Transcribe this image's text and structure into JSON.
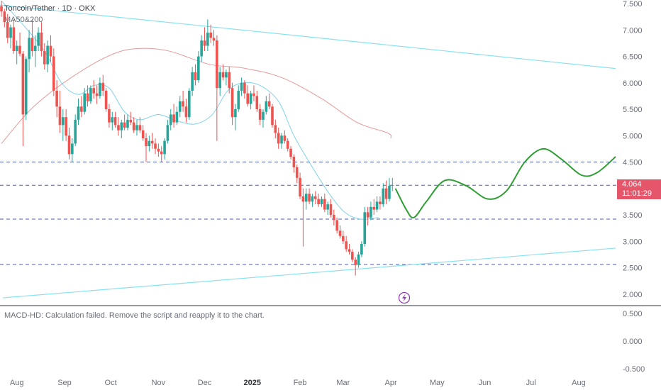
{
  "header": {
    "symbol_line": "Toncoin/Tether · 1D · OKX",
    "indicator": "MA50&200"
  },
  "price_tag": {
    "price": "4.064",
    "countdown": "11:01:29"
  },
  "macd_message": "MACD-HD: Calculation failed. Remove the script and reapply it to the chart.",
  "colors": {
    "up": "#26a69a",
    "down": "#ef5350",
    "ma50": "#7fd3e8",
    "ma200": "#e59a9a",
    "trend": "#87e2f0",
    "projection": "#2e9e32",
    "level": "#4b5bb5",
    "tag": "#e5566a"
  },
  "chart_data": {
    "type": "candlestick",
    "title": "Toncoin/Tether · 1D · OKX",
    "price_axis": {
      "ticks": [
        "7.500",
        "7.000",
        "6.500",
        "6.000",
        "5.500",
        "5.000",
        "4.500",
        "4.000",
        "3.500",
        "3.000",
        "2.500",
        "2.000"
      ],
      "range": [
        1.8,
        7.55
      ]
    },
    "macd_axis": {
      "ticks": [
        "0.500",
        "0.000",
        "-0.500"
      ]
    },
    "time_axis": {
      "labels": [
        "Aug",
        "Sep",
        "Oct",
        "Nov",
        "Dec",
        "2025",
        "Feb",
        "Mar",
        "Apr",
        "May",
        "Jun",
        "Jul",
        "Aug"
      ],
      "bold": "2025"
    },
    "last_price": 4.064,
    "horizontal_levels": [
      4.5,
      4.06,
      3.42,
      2.56
    ],
    "trendlines": [
      {
        "name": "upper",
        "points": [
          [
            "2024-06-25",
            7.55
          ],
          [
            "2025-08-25",
            6.27
          ]
        ]
      },
      {
        "name": "lower",
        "points": [
          [
            "2024-07-23",
            1.93
          ],
          [
            "2025-08-25",
            2.87
          ]
        ]
      }
    ],
    "series": [
      {
        "name": "MA50",
        "points": [
          [
            "2024-07-22",
            7.55
          ],
          [
            "2024-08-05",
            7.1
          ],
          [
            "2024-08-19",
            6.6
          ],
          [
            "2024-08-30",
            6.0
          ],
          [
            "2024-09-10",
            5.78
          ],
          [
            "2024-09-20",
            5.95
          ],
          [
            "2024-09-30",
            5.9
          ],
          [
            "2024-10-10",
            5.45
          ],
          [
            "2024-10-20",
            5.3
          ],
          [
            "2024-11-01",
            5.4
          ],
          [
            "2024-11-13",
            5.28
          ],
          [
            "2024-11-25",
            5.22
          ],
          [
            "2024-12-06",
            5.4
          ],
          [
            "2024-12-16",
            5.85
          ],
          [
            "2024-12-26",
            6.0
          ],
          [
            "2025-01-06",
            5.95
          ],
          [
            "2025-01-18",
            5.65
          ],
          [
            "2025-01-28",
            5.0
          ],
          [
            "2025-02-08",
            4.45
          ],
          [
            "2025-02-20",
            3.9
          ],
          [
            "2025-03-02",
            3.55
          ],
          [
            "2025-03-12",
            3.42
          ],
          [
            "2025-03-24",
            3.45
          ]
        ]
      },
      {
        "name": "MA200",
        "points": [
          [
            "2024-07-22",
            4.85
          ],
          [
            "2024-08-12",
            5.55
          ],
          [
            "2024-09-08",
            6.15
          ],
          [
            "2024-10-03",
            6.55
          ],
          [
            "2024-10-20",
            6.65
          ],
          [
            "2024-11-08",
            6.6
          ],
          [
            "2024-12-04",
            6.35
          ],
          [
            "2024-12-26",
            6.28
          ],
          [
            "2025-01-20",
            6.1
          ],
          [
            "2025-02-15",
            5.7
          ],
          [
            "2025-03-10",
            5.25
          ],
          [
            "2025-03-30",
            5.05
          ],
          [
            "2025-04-01",
            4.95
          ]
        ]
      },
      {
        "name": "projection",
        "points": [
          [
            "2025-04-04",
            4.0
          ],
          [
            "2025-04-11",
            3.6
          ],
          [
            "2025-04-16",
            3.45
          ],
          [
            "2025-04-24",
            3.75
          ],
          [
            "2025-05-06",
            4.15
          ],
          [
            "2025-05-20",
            4.05
          ],
          [
            "2025-06-03",
            3.8
          ],
          [
            "2025-06-15",
            3.95
          ],
          [
            "2025-06-27",
            4.5
          ],
          [
            "2025-07-09",
            4.75
          ],
          [
            "2025-07-21",
            4.55
          ],
          [
            "2025-08-03",
            4.25
          ],
          [
            "2025-08-13",
            4.3
          ],
          [
            "2025-08-25",
            4.6
          ]
        ]
      }
    ],
    "candles": [
      [
        "2024-07-22",
        7.45,
        7.55,
        7.25,
        7.35
      ],
      [
        "2024-07-24",
        7.35,
        7.4,
        7.05,
        7.15
      ],
      [
        "2024-07-26",
        7.15,
        7.3,
        6.75,
        6.85
      ],
      [
        "2024-07-28",
        6.85,
        7.1,
        6.65,
        7.05
      ],
      [
        "2024-07-30",
        7.05,
        7.2,
        6.55,
        6.6
      ],
      [
        "2024-08-01",
        6.6,
        6.8,
        6.35,
        6.7
      ],
      [
        "2024-08-03",
        6.7,
        6.95,
        6.5,
        6.55
      ],
      [
        "2024-08-05",
        6.55,
        6.6,
        4.8,
        5.4
      ],
      [
        "2024-08-07",
        5.4,
        6.5,
        5.3,
        6.45
      ],
      [
        "2024-08-09",
        6.45,
        7.0,
        6.2,
        6.85
      ],
      [
        "2024-08-11",
        6.85,
        7.2,
        6.5,
        6.6
      ],
      [
        "2024-08-13",
        6.6,
        6.9,
        6.3,
        6.7
      ],
      [
        "2024-08-15",
        6.7,
        7.05,
        6.6,
        6.95
      ],
      [
        "2024-08-17",
        6.95,
        7.15,
        6.5,
        6.6
      ],
      [
        "2024-08-19",
        6.6,
        6.75,
        6.25,
        6.35
      ],
      [
        "2024-08-21",
        6.35,
        6.8,
        6.2,
        6.7
      ],
      [
        "2024-08-23",
        6.7,
        6.9,
        6.4,
        6.5
      ],
      [
        "2024-08-25",
        6.5,
        6.65,
        5.75,
        5.85
      ],
      [
        "2024-08-27",
        5.85,
        6.05,
        5.35,
        5.55
      ],
      [
        "2024-08-29",
        5.55,
        5.85,
        5.05,
        5.2
      ],
      [
        "2024-08-31",
        5.2,
        5.5,
        4.9,
        5.35
      ],
      [
        "2024-09-02",
        5.35,
        5.5,
        4.9,
        5.0
      ],
      [
        "2024-09-04",
        5.0,
        5.15,
        4.55,
        4.65
      ],
      [
        "2024-09-06",
        4.65,
        4.95,
        4.5,
        4.85
      ],
      [
        "2024-09-08",
        4.85,
        5.4,
        4.8,
        5.3
      ],
      [
        "2024-09-10",
        5.3,
        5.7,
        5.2,
        5.55
      ],
      [
        "2024-09-12",
        5.55,
        5.75,
        5.35,
        5.45
      ],
      [
        "2024-09-14",
        5.45,
        5.9,
        5.4,
        5.8
      ],
      [
        "2024-09-16",
        5.8,
        5.95,
        5.55,
        5.65
      ],
      [
        "2024-09-18",
        5.65,
        5.95,
        5.6,
        5.9
      ],
      [
        "2024-09-20",
        5.9,
        6.05,
        5.7,
        5.8
      ],
      [
        "2024-09-22",
        5.8,
        5.95,
        5.6,
        5.75
      ],
      [
        "2024-09-24",
        5.75,
        6.1,
        5.7,
        6.0
      ],
      [
        "2024-09-26",
        6.0,
        6.15,
        5.75,
        5.85
      ],
      [
        "2024-09-28",
        5.85,
        5.9,
        5.45,
        5.5
      ],
      [
        "2024-09-30",
        5.5,
        5.6,
        5.15,
        5.25
      ],
      [
        "2024-10-02",
        5.25,
        5.45,
        5.1,
        5.35
      ],
      [
        "2024-10-04",
        5.35,
        5.45,
        5.15,
        5.2
      ],
      [
        "2024-10-06",
        5.2,
        5.35,
        5.0,
        5.1
      ],
      [
        "2024-10-08",
        5.1,
        5.3,
        4.95,
        5.25
      ],
      [
        "2024-10-10",
        5.25,
        5.4,
        5.1,
        5.15
      ],
      [
        "2024-10-12",
        5.15,
        5.4,
        5.1,
        5.3
      ],
      [
        "2024-10-14",
        5.3,
        5.45,
        5.2,
        5.25
      ],
      [
        "2024-10-16",
        5.25,
        5.35,
        5.05,
        5.1
      ],
      [
        "2024-10-18",
        5.1,
        5.3,
        5.0,
        5.2
      ],
      [
        "2024-10-20",
        5.2,
        5.35,
        5.05,
        5.1
      ],
      [
        "2024-10-22",
        5.1,
        5.2,
        4.9,
        4.95
      ],
      [
        "2024-10-24",
        4.95,
        5.05,
        4.5,
        4.8
      ],
      [
        "2024-10-26",
        4.8,
        5.0,
        4.7,
        4.9
      ],
      [
        "2024-10-28",
        4.9,
        5.05,
        4.75,
        4.85
      ],
      [
        "2024-10-30",
        4.85,
        4.95,
        4.65,
        4.75
      ],
      [
        "2024-11-01",
        4.75,
        4.85,
        4.6,
        4.7
      ],
      [
        "2024-11-03",
        4.7,
        4.8,
        4.5,
        4.65
      ],
      [
        "2024-11-05",
        4.65,
        4.95,
        4.55,
        4.9
      ],
      [
        "2024-11-07",
        4.9,
        5.3,
        4.85,
        5.2
      ],
      [
        "2024-11-09",
        5.2,
        5.5,
        5.1,
        5.4
      ],
      [
        "2024-11-11",
        5.4,
        5.6,
        5.15,
        5.25
      ],
      [
        "2024-11-13",
        5.25,
        5.55,
        5.2,
        5.45
      ],
      [
        "2024-11-15",
        5.45,
        5.75,
        5.35,
        5.65
      ],
      [
        "2024-11-17",
        5.65,
        5.85,
        5.45,
        5.55
      ],
      [
        "2024-11-19",
        5.55,
        5.7,
        5.25,
        5.35
      ],
      [
        "2024-11-21",
        5.35,
        5.9,
        5.3,
        5.85
      ],
      [
        "2024-11-23",
        5.85,
        6.3,
        5.75,
        6.2
      ],
      [
        "2024-11-25",
        6.2,
        6.35,
        5.95,
        6.05
      ],
      [
        "2024-11-27",
        6.05,
        6.6,
        6.0,
        6.5
      ],
      [
        "2024-11-29",
        6.5,
        6.9,
        6.4,
        6.8
      ],
      [
        "2024-12-01",
        6.8,
        7.05,
        6.6,
        6.7
      ],
      [
        "2024-12-03",
        6.7,
        7.2,
        6.6,
        6.95
      ],
      [
        "2024-12-05",
        6.95,
        7.1,
        6.75,
        6.85
      ],
      [
        "2024-12-07",
        6.85,
        7.0,
        6.7,
        6.8
      ],
      [
        "2024-12-09",
        6.8,
        6.9,
        4.9,
        5.9
      ],
      [
        "2024-12-11",
        5.9,
        6.3,
        5.75,
        6.2
      ],
      [
        "2024-12-13",
        6.2,
        6.35,
        6.05,
        6.1
      ],
      [
        "2024-12-15",
        6.1,
        6.25,
        5.95,
        6.2
      ],
      [
        "2024-12-17",
        6.2,
        6.3,
        5.8,
        5.9
      ],
      [
        "2024-12-19",
        5.9,
        6.0,
        5.2,
        5.35
      ],
      [
        "2024-12-21",
        5.35,
        5.6,
        5.1,
        5.5
      ],
      [
        "2024-12-23",
        5.5,
        5.95,
        5.45,
        5.85
      ],
      [
        "2024-12-25",
        5.85,
        6.1,
        5.75,
        6.0
      ],
      [
        "2024-12-27",
        6.0,
        6.05,
        5.7,
        5.8
      ],
      [
        "2024-12-29",
        5.8,
        5.95,
        5.55,
        5.6
      ],
      [
        "2024-12-31",
        5.6,
        5.85,
        5.5,
        5.8
      ],
      [
        "2025-01-02",
        5.8,
        5.95,
        5.65,
        5.75
      ],
      [
        "2025-01-04",
        5.75,
        5.85,
        5.45,
        5.5
      ],
      [
        "2025-01-06",
        5.5,
        5.6,
        5.2,
        5.3
      ],
      [
        "2025-01-08",
        5.3,
        5.5,
        5.15,
        5.45
      ],
      [
        "2025-01-10",
        5.45,
        5.75,
        5.4,
        5.65
      ],
      [
        "2025-01-12",
        5.65,
        5.8,
        5.5,
        5.55
      ],
      [
        "2025-01-14",
        5.55,
        5.6,
        5.15,
        5.2
      ],
      [
        "2025-01-16",
        5.2,
        5.3,
        4.95,
        5.05
      ],
      [
        "2025-01-18",
        5.05,
        5.15,
        4.75,
        4.85
      ],
      [
        "2025-01-20",
        4.85,
        5.05,
        4.75,
        5.0
      ],
      [
        "2025-01-22",
        5.0,
        5.1,
        4.85,
        4.9
      ],
      [
        "2025-01-24",
        4.9,
        4.95,
        4.7,
        4.75
      ],
      [
        "2025-01-26",
        4.75,
        4.8,
        4.55,
        4.6
      ],
      [
        "2025-01-28",
        4.6,
        4.65,
        4.3,
        4.4
      ],
      [
        "2025-01-30",
        4.4,
        4.45,
        4.1,
        4.2
      ],
      [
        "2025-02-01",
        4.2,
        4.3,
        3.8,
        3.85
      ],
      [
        "2025-02-03",
        3.85,
        4.0,
        2.9,
        3.75
      ],
      [
        "2025-02-05",
        3.75,
        4.0,
        3.6,
        3.9
      ],
      [
        "2025-02-07",
        3.9,
        4.0,
        3.7,
        3.75
      ],
      [
        "2025-02-09",
        3.75,
        3.9,
        3.65,
        3.85
      ],
      [
        "2025-02-11",
        3.85,
        3.95,
        3.7,
        3.8
      ],
      [
        "2025-02-13",
        3.8,
        3.9,
        3.65,
        3.7
      ],
      [
        "2025-02-15",
        3.7,
        3.85,
        3.65,
        3.8
      ],
      [
        "2025-02-17",
        3.8,
        3.9,
        3.55,
        3.6
      ],
      [
        "2025-02-19",
        3.6,
        3.75,
        3.5,
        3.7
      ],
      [
        "2025-02-21",
        3.7,
        3.8,
        3.45,
        3.5
      ],
      [
        "2025-02-23",
        3.5,
        3.6,
        3.3,
        3.4
      ],
      [
        "2025-02-25",
        3.4,
        3.45,
        3.15,
        3.2
      ],
      [
        "2025-02-27",
        3.2,
        3.3,
        3.05,
        3.1
      ],
      [
        "2025-03-01",
        3.1,
        3.2,
        2.95,
        3.0
      ],
      [
        "2025-03-03",
        3.0,
        3.1,
        2.8,
        2.85
      ],
      [
        "2025-03-05",
        2.85,
        2.95,
        2.75,
        2.8
      ],
      [
        "2025-03-07",
        2.8,
        2.85,
        2.6,
        2.65
      ],
      [
        "2025-03-09",
        2.65,
        2.7,
        2.35,
        2.55
      ],
      [
        "2025-03-11",
        2.55,
        2.8,
        2.5,
        2.75
      ],
      [
        "2025-03-13",
        2.75,
        3.0,
        2.7,
        2.95
      ],
      [
        "2025-03-15",
        2.95,
        3.65,
        2.9,
        3.55
      ],
      [
        "2025-03-17",
        3.55,
        3.65,
        3.3,
        3.45
      ],
      [
        "2025-03-19",
        3.45,
        3.75,
        3.4,
        3.65
      ],
      [
        "2025-03-21",
        3.65,
        3.8,
        3.5,
        3.6
      ],
      [
        "2025-03-23",
        3.6,
        3.85,
        3.55,
        3.75
      ],
      [
        "2025-03-25",
        3.75,
        3.85,
        3.6,
        3.7
      ],
      [
        "2025-03-27",
        3.7,
        4.1,
        3.65,
        4.0
      ],
      [
        "2025-03-29",
        4.0,
        4.15,
        3.7,
        3.8
      ],
      [
        "2025-03-31",
        3.8,
        4.2,
        3.75,
        4.05
      ],
      [
        "2025-04-02",
        4.05,
        4.2,
        3.95,
        4.064
      ]
    ]
  }
}
